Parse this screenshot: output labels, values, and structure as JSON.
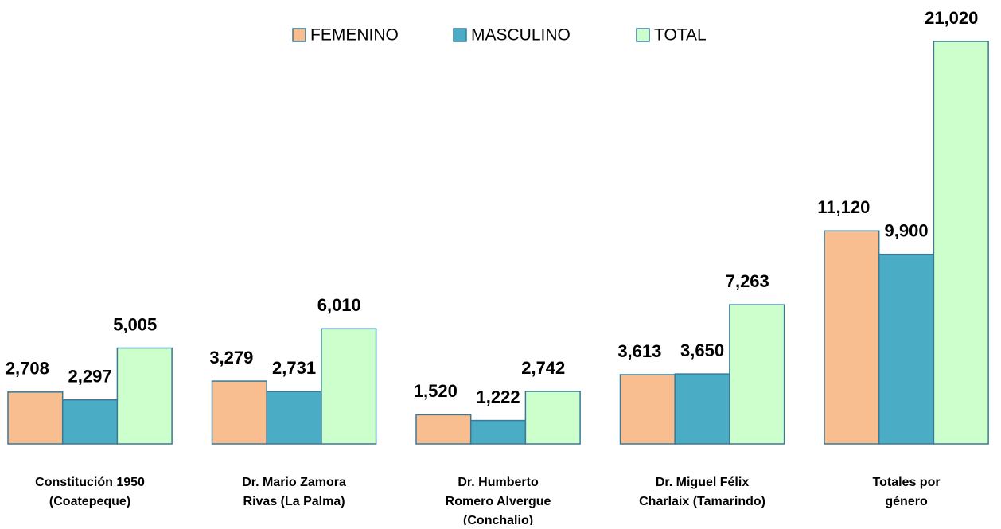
{
  "chart_data": {
    "type": "bar",
    "categories": [
      [
        "Constitución 1950",
        "(Coatepeque)"
      ],
      [
        "Dr. Mario Zamora",
        "Rivas (La Palma)"
      ],
      [
        "Dr. Humberto",
        "Romero Alvergue",
        "(Conchalio)"
      ],
      [
        "Dr. Miguel Félix",
        "Charlaix (Tamarindo)"
      ],
      [
        "Totales por",
        "género"
      ]
    ],
    "series": [
      {
        "name": "FEMENINO",
        "color": "#f9be8f",
        "values": [
          2708,
          3279,
          1520,
          3613,
          11120
        ],
        "value_labels": [
          "2,708",
          "3,279",
          "1,520",
          "3,613",
          "11,120"
        ]
      },
      {
        "name": "MASCULINO",
        "color": "#4bacc6",
        "values": [
          2297,
          2731,
          1222,
          3650,
          9900
        ],
        "value_labels": [
          "2,297",
          "2,731",
          "1,222",
          "3,650",
          "9,900"
        ]
      },
      {
        "name": "TOTAL",
        "color": "#ccffcc",
        "values": [
          5005,
          6010,
          2742,
          7263,
          21020
        ],
        "value_labels": [
          "5,005",
          "6,010",
          "2,742",
          "7,263",
          "21,020"
        ]
      }
    ],
    "legend": "top"
  }
}
